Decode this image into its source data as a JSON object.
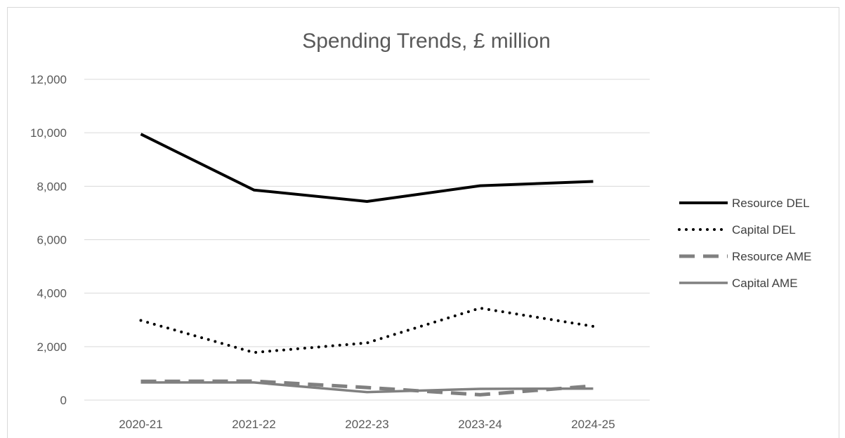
{
  "chart_data": {
    "type": "line",
    "title": "Spending Trends, £ million",
    "xlabel": "",
    "ylabel": "",
    "categories": [
      "2020-21",
      "2021-22",
      "2022-23",
      "2023-24",
      "2024-25"
    ],
    "ylim": [
      0,
      12000
    ],
    "yticks": [
      0,
      2000,
      4000,
      6000,
      8000,
      10000,
      12000
    ],
    "ytick_labels": [
      "0",
      "2,000",
      "4,000",
      "6,000",
      "8,000",
      "10,000",
      "12,000"
    ],
    "grid": true,
    "legend_position": "right",
    "series": [
      {
        "name": "Resource DEL",
        "values": [
          9950,
          7860,
          7430,
          8020,
          8180
        ],
        "color": "#000000",
        "style": "solid"
      },
      {
        "name": "Capital DEL",
        "values": [
          2980,
          1780,
          2140,
          3440,
          2760
        ],
        "color": "#000000",
        "style": "dotted"
      },
      {
        "name": "Resource AME",
        "values": [
          700,
          710,
          470,
          200,
          530
        ],
        "color": "#808080",
        "style": "dashed"
      },
      {
        "name": "Capital AME",
        "values": [
          660,
          660,
          300,
          420,
          430
        ],
        "color": "#808080",
        "style": "solid"
      }
    ]
  }
}
